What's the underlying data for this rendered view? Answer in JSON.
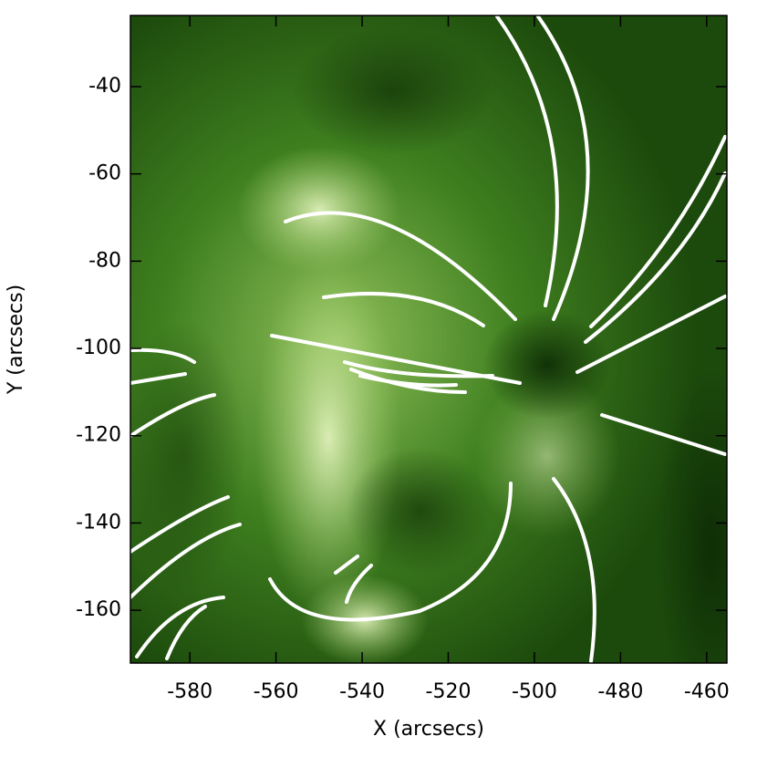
{
  "chart_data": {
    "type": "image",
    "xlabel": "X (arcsecs)",
    "ylabel": "Y (arcsecs)",
    "xlim": [
      -593.8,
      -455.3
    ],
    "ylim": [
      -172.1,
      -23.7
    ],
    "xticks": [
      -580,
      -560,
      -540,
      -520,
      -500,
      -480,
      -460
    ],
    "yticks": [
      -40,
      -60,
      -80,
      -100,
      -120,
      -140,
      -160
    ]
  }
}
